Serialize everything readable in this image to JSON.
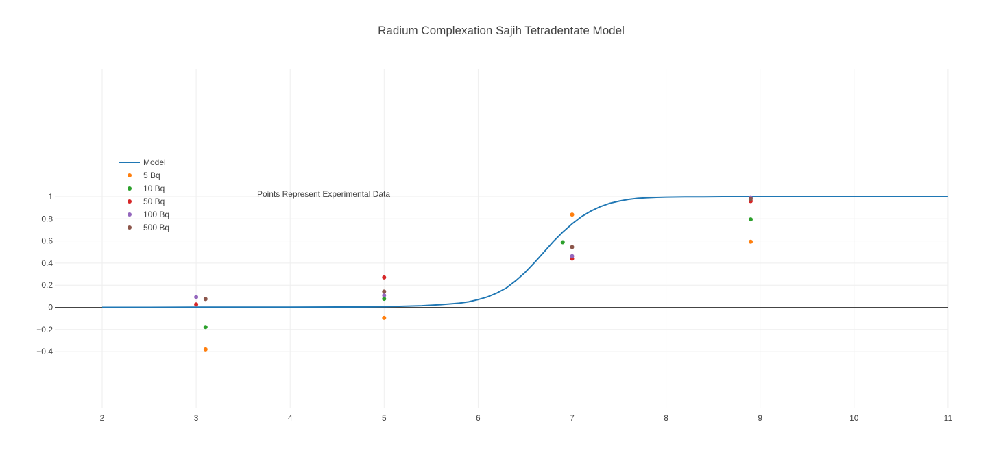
{
  "chart_data": {
    "type": "scatter",
    "title": "Radium Complexation Sajih Tetradentate Model",
    "xlabel": "",
    "ylabel": "",
    "xlim": [
      1.55,
      11
    ],
    "ylim": [
      -0.47,
      1.08
    ],
    "grid": true,
    "legend_position": "left",
    "x_ticks": [
      2,
      3,
      4,
      5,
      6,
      7,
      8,
      9,
      10,
      11
    ],
    "y_ticks": [
      -0.4,
      -0.2,
      0,
      0.2,
      0.4,
      0.6,
      0.8,
      1
    ],
    "y_tick_labels": [
      "−0.4",
      "−0.2",
      "0",
      "0.2",
      "0.4",
      "0.6",
      "0.8",
      "1"
    ],
    "annotation": "Points Represent Experimental Data",
    "model": {
      "name": "Model",
      "color": "#1f77b4",
      "x": [
        2,
        2.5,
        3,
        3.5,
        4,
        4.5,
        4.8,
        5,
        5.2,
        5.4,
        5.6,
        5.8,
        5.9,
        6,
        6.1,
        6.2,
        6.3,
        6.4,
        6.5,
        6.6,
        6.7,
        6.8,
        6.9,
        7,
        7.1,
        7.2,
        7.3,
        7.4,
        7.5,
        7.6,
        7.7,
        7.8,
        7.9,
        8,
        8.2,
        8.4,
        8.6,
        9,
        10,
        11
      ],
      "y": [
        0,
        0,
        0.001,
        0.001,
        0.002,
        0.003,
        0.004,
        0.006,
        0.01,
        0.015,
        0.024,
        0.038,
        0.05,
        0.07,
        0.095,
        0.13,
        0.175,
        0.24,
        0.315,
        0.405,
        0.5,
        0.595,
        0.68,
        0.755,
        0.82,
        0.87,
        0.91,
        0.94,
        0.96,
        0.975,
        0.985,
        0.99,
        0.994,
        0.996,
        0.998,
        0.999,
        1,
        1,
        1,
        1
      ]
    },
    "series": [
      {
        "name": "5 Bq",
        "color": "#ff7f0e",
        "x": [
          3.1,
          5,
          7,
          8.9
        ],
        "y": [
          -0.38,
          -0.095,
          0.838,
          0.593
        ]
      },
      {
        "name": "10 Bq",
        "color": "#2ca02c",
        "x": [
          3.1,
          5,
          6.9,
          8.9
        ],
        "y": [
          -0.178,
          0.077,
          0.588,
          0.795
        ]
      },
      {
        "name": "50 Bq",
        "color": "#d62728",
        "x": [
          3,
          5,
          7,
          8.9
        ],
        "y": [
          0.026,
          0.27,
          0.44,
          0.96
        ]
      },
      {
        "name": "100 Bq",
        "color": "#9467bd",
        "x": [
          3,
          5,
          7,
          8.9
        ],
        "y": [
          0.093,
          0.108,
          0.463,
          0.99
        ]
      },
      {
        "name": "500 Bq",
        "color": "#8c564b",
        "x": [
          3.1,
          5,
          7,
          8.9
        ],
        "y": [
          0.075,
          0.143,
          0.545,
          0.98
        ]
      }
    ]
  }
}
